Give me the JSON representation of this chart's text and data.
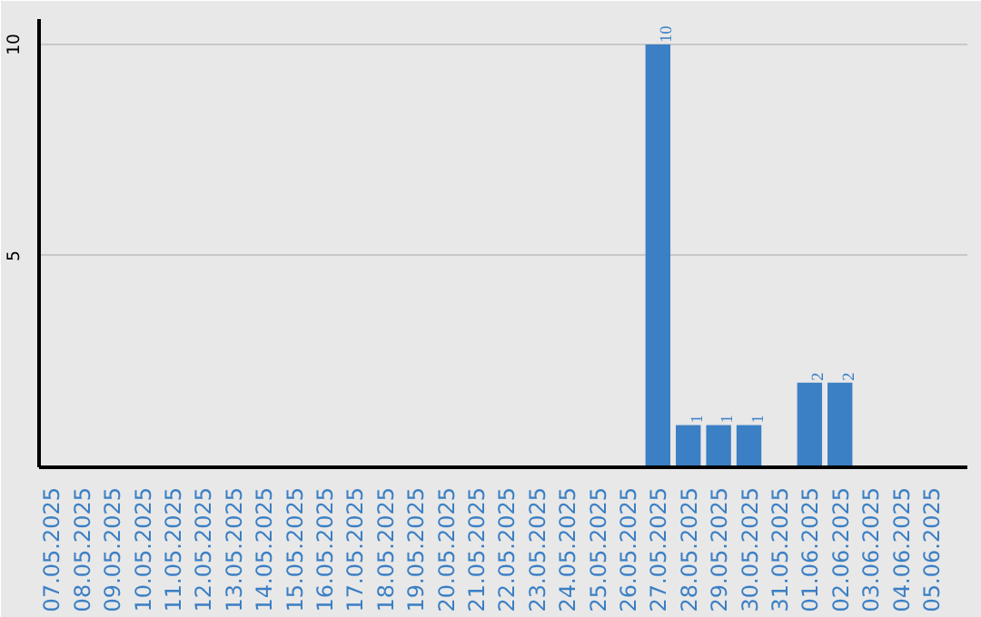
{
  "chart_data": {
    "type": "bar",
    "categories": [
      "07.05.2025",
      "08.05.2025",
      "09.05.2025",
      "10.05.2025",
      "11.05.2025",
      "12.05.2025",
      "13.05.2025",
      "14.05.2025",
      "15.05.2025",
      "16.05.2025",
      "17.05.2025",
      "18.05.2025",
      "19.05.2025",
      "20.05.2025",
      "21.05.2025",
      "22.05.2025",
      "23.05.2025",
      "24.05.2025",
      "25.05.2025",
      "26.05.2025",
      "27.05.2025",
      "28.05.2025",
      "29.05.2025",
      "30.05.2025",
      "31.05.2025",
      "01.06.2025",
      "02.06.2025",
      "03.06.2025",
      "04.06.2025",
      "05.06.2025"
    ],
    "values": [
      0,
      0,
      0,
      0,
      0,
      0,
      0,
      0,
      0,
      0,
      0,
      0,
      0,
      0,
      0,
      0,
      0,
      0,
      0,
      0,
      10,
      1,
      1,
      1,
      0,
      2,
      2,
      0,
      0,
      0
    ],
    "value_labels": [
      null,
      null,
      null,
      null,
      null,
      null,
      null,
      null,
      null,
      null,
      null,
      null,
      null,
      null,
      null,
      null,
      null,
      null,
      null,
      null,
      "10",
      "1",
      "1",
      "1",
      null,
      "2",
      "2",
      null,
      null,
      null
    ],
    "color": "#3b7fc4",
    "ylim": [
      0,
      10.6
    ],
    "yticks": [
      5,
      10
    ],
    "grid": "y"
  }
}
